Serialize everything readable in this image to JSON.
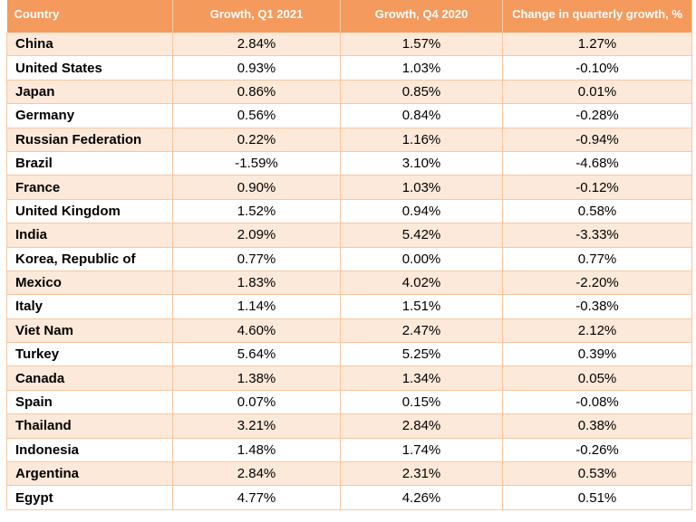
{
  "table": {
    "headers": [
      "Country",
      "Growth, Q1 2021",
      "Growth, Q4 2020",
      "Change in quarterly growth, %"
    ],
    "rows": [
      [
        "China",
        "2.84%",
        "1.57%",
        "1.27%"
      ],
      [
        "United States",
        "0.93%",
        "1.03%",
        "-0.10%"
      ],
      [
        "Japan",
        "0.86%",
        "0.85%",
        "0.01%"
      ],
      [
        "Germany",
        "0.56%",
        "0.84%",
        "-0.28%"
      ],
      [
        "Russian Federation",
        "0.22%",
        "1.16%",
        "-0.94%"
      ],
      [
        "Brazil",
        "-1.59%",
        "3.10%",
        "-4.68%"
      ],
      [
        "France",
        "0.90%",
        "1.03%",
        "-0.12%"
      ],
      [
        "United Kingdom",
        "1.52%",
        "0.94%",
        "0.58%"
      ],
      [
        "India",
        "2.09%",
        "5.42%",
        "-3.33%"
      ],
      [
        "Korea, Republic of",
        "0.77%",
        "0.00%",
        "0.77%"
      ],
      [
        "Mexico",
        "1.83%",
        "4.02%",
        "-2.20%"
      ],
      [
        "Italy",
        "1.14%",
        "1.51%",
        "-0.38%"
      ],
      [
        "Viet Nam",
        "4.60%",
        "2.47%",
        "2.12%"
      ],
      [
        "Turkey",
        "5.64%",
        "5.25%",
        "0.39%"
      ],
      [
        "Canada",
        "1.38%",
        "1.34%",
        "0.05%"
      ],
      [
        "Spain",
        "0.07%",
        "0.15%",
        "-0.08%"
      ],
      [
        "Thailand",
        "3.21%",
        "2.84%",
        "0.38%"
      ],
      [
        "Indonesia",
        "1.48%",
        "1.74%",
        "-0.26%"
      ],
      [
        "Argentina",
        "2.84%",
        "2.31%",
        "0.53%"
      ],
      [
        "Egypt",
        "4.77%",
        "4.26%",
        "0.51%"
      ]
    ]
  },
  "colors": {
    "header_background": "#f49a5c",
    "header_text": "#ffffff",
    "band_row": "#fde9d9",
    "plain_row": "#ffffff",
    "grid_line": "#f7c6a0"
  }
}
